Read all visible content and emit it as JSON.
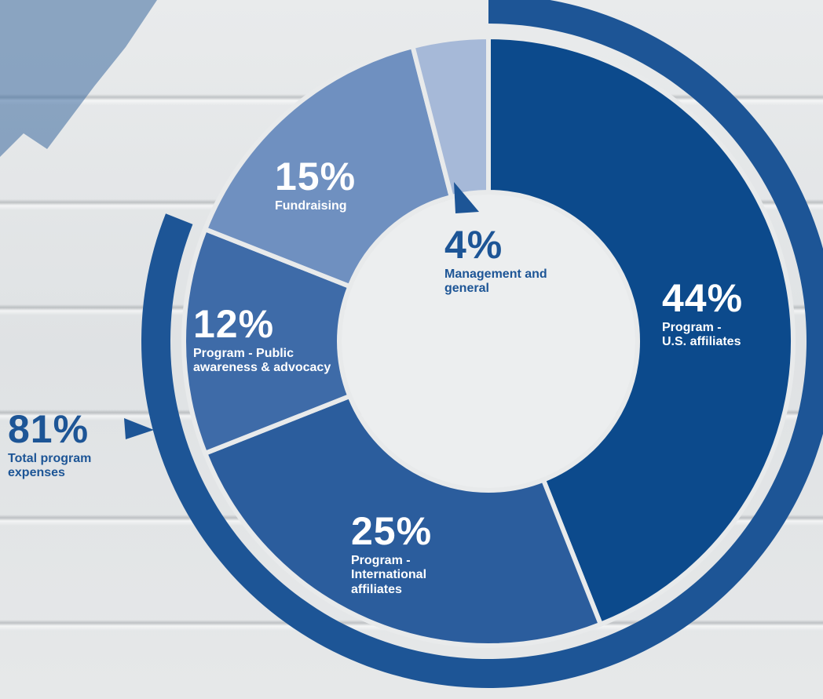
{
  "chart_data": {
    "type": "donut",
    "categories": [
      "Program - U.S. affiliates",
      "Program - International affiliates",
      "Program - Public awareness & advocacy",
      "Fundraising",
      "Management and general"
    ],
    "values": [
      44,
      25,
      12,
      15,
      4
    ],
    "value_labels": [
      "44%",
      "25%",
      "12%",
      "15%",
      "4%"
    ],
    "colors": [
      "#0c4a8c",
      "#2b5d9d",
      "#3e6ba8",
      "#6f90c0",
      "#a6b9d8"
    ],
    "total": {
      "value": 81,
      "value_label": "81%",
      "label": "Total program expenses",
      "color": "#1d5596"
    }
  }
}
